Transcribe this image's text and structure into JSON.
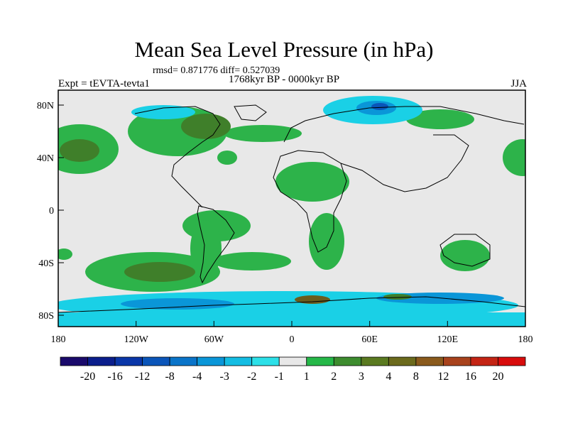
{
  "map": {
    "title": "Mean Sea Level Pressure (in hPa)",
    "stats_line": "rmsd= 0.871776 diff= 0.527039",
    "period": "1768kyr BP - 0000kyr BP",
    "experiment": "Expt = tEVTA-tevta1",
    "season": "JJA",
    "lon_labels": [
      "180",
      "120W",
      "60W",
      "0",
      "60E",
      "120E",
      "180"
    ],
    "lat_labels": [
      "80N",
      "40N",
      "0",
      "40S",
      "80S"
    ]
  },
  "colorbar": {
    "colors": [
      "#1a0a6b",
      "#0b1e8c",
      "#0a36a8",
      "#0b55b9",
      "#0a74c9",
      "#0a96d8",
      "#14bde3",
      "#2ce0e8",
      "#e8e8e8",
      "#25b848",
      "#3d8c2e",
      "#5a7a20",
      "#6b6a1c",
      "#8a5a1c",
      "#a8421c",
      "#c42414",
      "#d80c0c"
    ],
    "labels": [
      "-20",
      "-16",
      "-12",
      "-8",
      "-4",
      "-3",
      "-2",
      "-1",
      "1",
      "2",
      "3",
      "4",
      "8",
      "12",
      "16",
      "20"
    ]
  },
  "legend_colors": {
    "land_bg": "#e8e8e8",
    "pos_small": "#2db34a",
    "pos_mid": "#3f7f2a",
    "pos_high": "#6b5c1d",
    "neg_small": "#1ad0e6",
    "neg_mid": "#0a96d8",
    "neg_high": "#0a55b9"
  }
}
